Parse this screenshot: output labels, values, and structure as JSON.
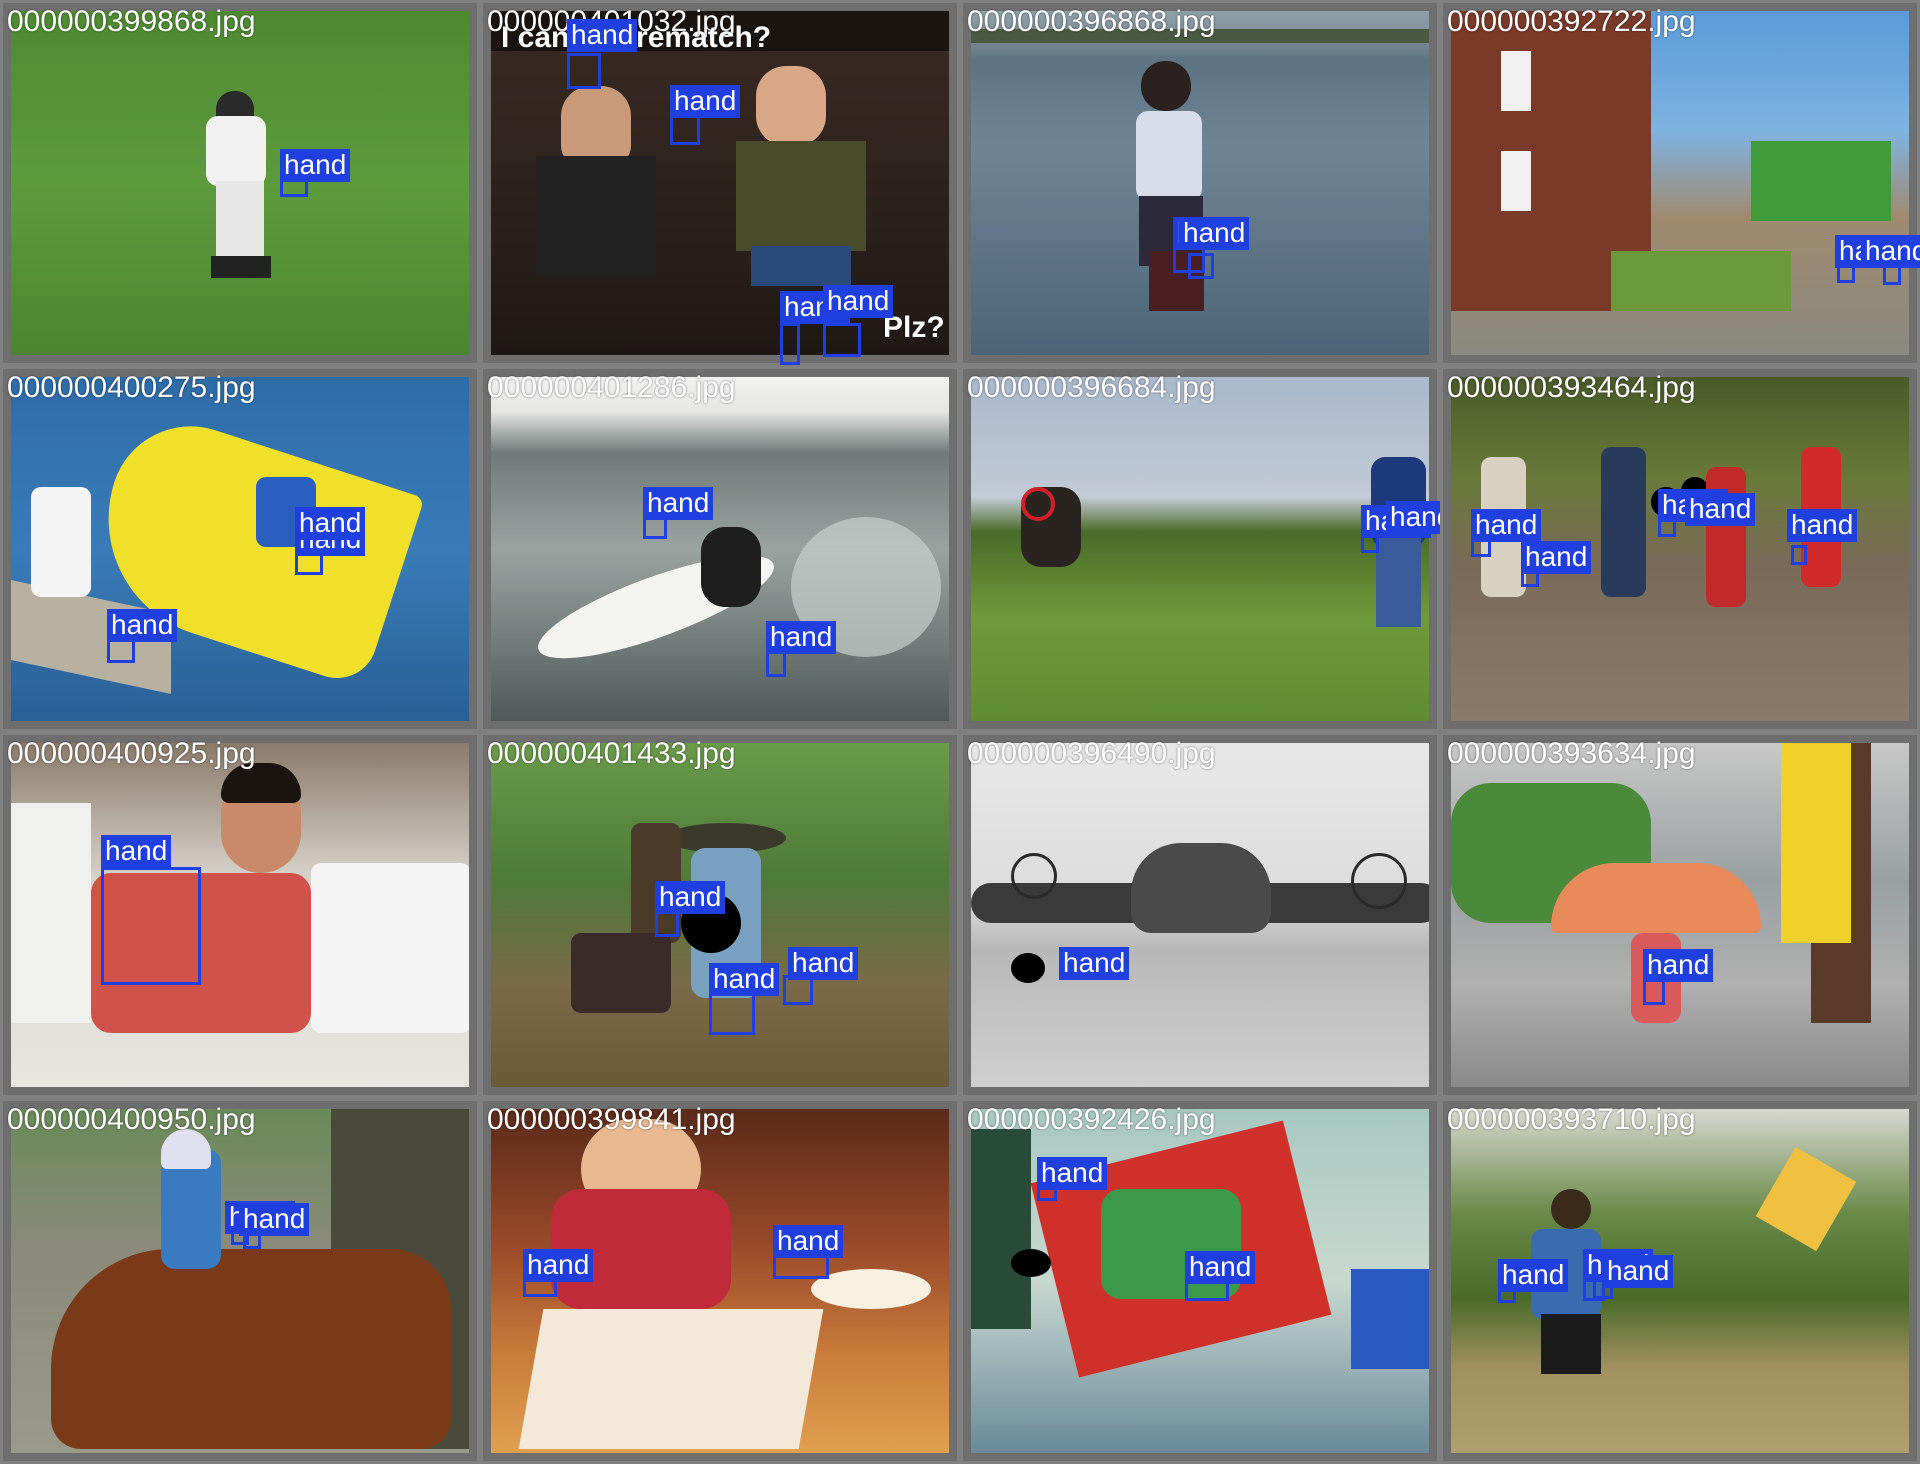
{
  "mosaic": {
    "tiles": [
      {
        "filename": "000000399868.jpg",
        "scene": "baseball-field",
        "detections": [
          "hand"
        ]
      },
      {
        "filename": "000000401032.jpg",
        "scene": "party-photo",
        "caption": "I can haz rematch?",
        "caption_2": "Plz?",
        "detections": [
          "hand",
          "hand",
          "hand",
          "hand"
        ]
      },
      {
        "filename": "000000396868.jpg",
        "scene": "lake-shore",
        "detections": [
          "hand",
          "hand"
        ]
      },
      {
        "filename": "000000392722.jpg",
        "scene": "village-street",
        "detections": [
          "hand",
          "hand"
        ]
      },
      {
        "filename": "000000400275.jpg",
        "scene": "powerboat",
        "detections": [
          "hand",
          "hand",
          "hand"
        ]
      },
      {
        "filename": "000000401286.jpg",
        "scene": "surfer",
        "detections": [
          "hand",
          "hand"
        ]
      },
      {
        "filename": "000000396684.jpg",
        "scene": "dog-frisbee",
        "detections": [
          "hand",
          "hand"
        ]
      },
      {
        "filename": "000000393464.jpg",
        "scene": "children-running",
        "detections": [
          "hand",
          "hand",
          "hand",
          "hand",
          "hand"
        ]
      },
      {
        "filename": "000000400925.jpg",
        "scene": "indoor-selfie",
        "detections": [
          "hand"
        ]
      },
      {
        "filename": "000000401433.jpg",
        "scene": "forest-cart",
        "detections": [
          "hand",
          "hand",
          "hand"
        ]
      },
      {
        "filename": "000000396490.jpg",
        "scene": "bomber-plane",
        "detections": [
          "hand"
        ]
      },
      {
        "filename": "000000393634.jpg",
        "scene": "umbrella-street",
        "detections": [
          "hand"
        ]
      },
      {
        "filename": "000000400950.jpg",
        "scene": "horse-ride",
        "detections": [
          "hand",
          "hand"
        ]
      },
      {
        "filename": "000000399841.jpg",
        "scene": "restaurant",
        "detections": [
          "hand",
          "hand"
        ]
      },
      {
        "filename": "000000392426.jpg",
        "scene": "kite-indoor",
        "detections": [
          "hand",
          "hand"
        ]
      },
      {
        "filename": "000000393710.jpg",
        "scene": "kite-field",
        "detections": [
          "hand",
          "hand",
          "hand"
        ]
      }
    ]
  },
  "colors": {
    "box": "#1f3fe0",
    "label_text": "#ffffff",
    "filename_text": "#ffffff",
    "border": "#808080"
  }
}
